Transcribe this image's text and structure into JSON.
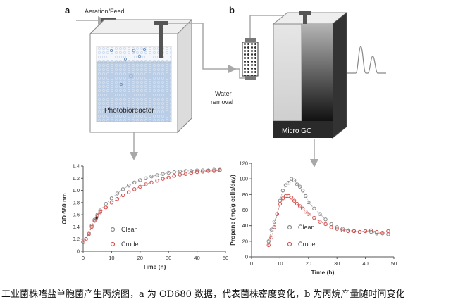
{
  "panels": {
    "a_letter": "a",
    "b_letter": "b"
  },
  "schematic": {
    "aeration_label": "Aeration/Feed",
    "reactor_label": "Photobioreactor",
    "water_removal_line1": "Water",
    "water_removal_line2": "removal",
    "gc_label": "Micro GC"
  },
  "caption": "工业菌株嗜盐单胞菌产生丙烷图，a 为 OD680 数据，代表菌株密度变化，b 为丙烷产量随时间变化",
  "colors": {
    "clean": "#8a8a8a",
    "crude": "#d2504e",
    "reactor_water": "#b9cde6",
    "arrow": "#a8a8a8"
  },
  "chart_data": [
    {
      "type": "scatter",
      "xlabel": "Time (h)",
      "ylabel": "OD 680 nm",
      "xlim": [
        0,
        50
      ],
      "ylim": [
        0,
        1.4
      ],
      "xticks": [
        "0",
        "10",
        "20",
        "30",
        "40",
        "50"
      ],
      "yticks": [
        "0",
        "0.2",
        "0.4",
        "0.6",
        "0.8",
        "1.0",
        "1.2",
        "1.4"
      ],
      "annotation": "*",
      "annotation_point": [
        3,
        0.5
      ],
      "legend_placement": "bottom-center",
      "series": [
        {
          "name": "Clean",
          "x": [
            0,
            1,
            2,
            3,
            4,
            5,
            6,
            8,
            10,
            12,
            14,
            16,
            18,
            20,
            22,
            24,
            26,
            28,
            30,
            32,
            34,
            36,
            38,
            40,
            42,
            44,
            46,
            48
          ],
          "y": [
            0.15,
            0.2,
            0.3,
            0.42,
            0.52,
            0.6,
            0.67,
            0.78,
            0.87,
            0.95,
            1.02,
            1.08,
            1.13,
            1.17,
            1.2,
            1.23,
            1.25,
            1.27,
            1.29,
            1.3,
            1.31,
            1.32,
            1.32,
            1.33,
            1.33,
            1.33,
            1.34,
            1.34
          ]
        },
        {
          "name": "Crude",
          "x": [
            0,
            1,
            2,
            3,
            4,
            5,
            6,
            8,
            10,
            12,
            14,
            16,
            18,
            20,
            22,
            24,
            26,
            28,
            30,
            32,
            34,
            36,
            38,
            40,
            42,
            44,
            46,
            48
          ],
          "y": [
            0.15,
            0.2,
            0.28,
            0.4,
            0.5,
            0.58,
            0.64,
            0.72,
            0.8,
            0.86,
            0.92,
            0.97,
            1.02,
            1.06,
            1.1,
            1.13,
            1.16,
            1.19,
            1.21,
            1.24,
            1.26,
            1.27,
            1.29,
            1.3,
            1.31,
            1.32,
            1.32,
            1.33
          ]
        }
      ]
    },
    {
      "type": "scatter",
      "xlabel": "Time (h)",
      "ylabel": "Propane (mg/g cells/day)",
      "xlim": [
        0,
        50
      ],
      "ylim": [
        0,
        120
      ],
      "xticks": [
        "0",
        "10",
        "20",
        "30",
        "40",
        "50"
      ],
      "yticks": [
        "0",
        "20",
        "40",
        "60",
        "80",
        "100",
        "120"
      ],
      "legend_placement": "bottom-left",
      "series": [
        {
          "name": "Clean",
          "x": [
            6,
            7,
            8,
            9,
            10,
            11,
            12,
            13,
            14,
            15,
            16,
            17,
            18,
            19,
            20,
            22,
            24,
            26,
            28,
            30,
            32,
            34,
            36,
            38,
            40,
            42,
            44,
            46,
            48
          ],
          "y": [
            20,
            35,
            45,
            55,
            72,
            85,
            92,
            95,
            100,
            98,
            93,
            90,
            85,
            78,
            70,
            62,
            55,
            48,
            42,
            38,
            36,
            34,
            33,
            32,
            33,
            32,
            30,
            30,
            29
          ]
        },
        {
          "name": "Crude",
          "x": [
            6,
            7,
            8,
            9,
            10,
            11,
            12,
            13,
            14,
            15,
            16,
            17,
            18,
            19,
            20,
            22,
            24,
            26,
            28,
            30,
            32,
            34,
            36,
            38,
            40,
            42,
            44,
            46,
            48
          ],
          "y": [
            15,
            25,
            38,
            55,
            68,
            75,
            78,
            78,
            76,
            72,
            68,
            65,
            62,
            58,
            55,
            50,
            45,
            42,
            38,
            36,
            34,
            33,
            33,
            32,
            33,
            34,
            32,
            31,
            33
          ]
        }
      ]
    }
  ]
}
